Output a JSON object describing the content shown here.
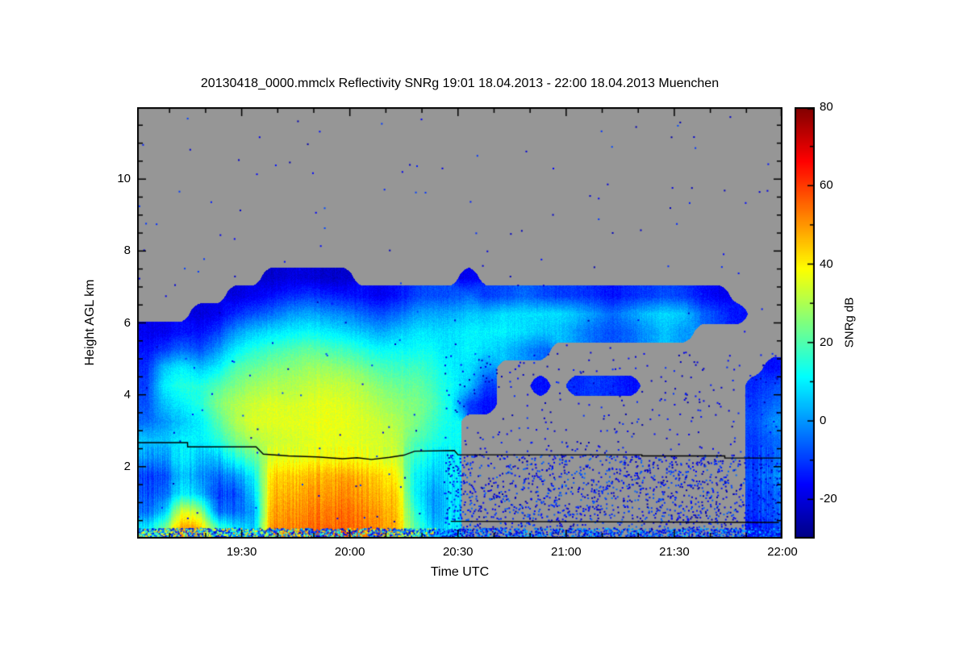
{
  "page": {
    "background": "#ffffff"
  },
  "chart_data": {
    "type": "heatmap",
    "title": "20130418_0000.mmclx Reflectivity SNRg   19:01 18.04.2013 - 22:00 18.04.2013 Muenchen",
    "xlabel": "Time UTC",
    "ylabel": "Height AGL km",
    "colorbar_label": "SNRg dB",
    "xlim_minutes": [
      0,
      179
    ],
    "ylim_km": [
      0,
      12
    ],
    "value_range_db": [
      -30,
      80
    ],
    "background_nodata_color": "#969696",
    "frame_color": "#000000",
    "x_ticks": [
      {
        "t": 29,
        "label": "19:30"
      },
      {
        "t": 59,
        "label": "20:00"
      },
      {
        "t": 89,
        "label": "20:30"
      },
      {
        "t": 119,
        "label": "21:00"
      },
      {
        "t": 149,
        "label": "21:30"
      },
      {
        "t": 179,
        "label": "22:00"
      }
    ],
    "x_minor_step_min": 10,
    "y_ticks": [
      {
        "h": 2,
        "label": "2"
      },
      {
        "h": 4,
        "label": "4"
      },
      {
        "h": 6,
        "label": "6"
      },
      {
        "h": 8,
        "label": "8"
      },
      {
        "h": 10,
        "label": "10"
      }
    ],
    "y_minor_step_km": 0.5,
    "colorbar_ticks": [
      {
        "v": 80,
        "label": "80"
      },
      {
        "v": 60,
        "label": "60"
      },
      {
        "v": 40,
        "label": "40"
      },
      {
        "v": 20,
        "label": "20"
      },
      {
        "v": 0,
        "label": "0"
      },
      {
        "v": -20,
        "label": "-20"
      }
    ],
    "colorbar_minor_step": 10,
    "colormap": {
      "range": [
        -30,
        80
      ],
      "stops": [
        {
          "t": 0.0,
          "c": "#000083"
        },
        {
          "t": 0.125,
          "c": "#0000ff"
        },
        {
          "t": 0.375,
          "c": "#00ffff"
        },
        {
          "t": 0.625,
          "c": "#ffff00"
        },
        {
          "t": 0.875,
          "c": "#ff0000"
        },
        {
          "t": 1.0,
          "c": "#800000"
        }
      ]
    },
    "grid": {
      "t_min": 0,
      "t_max": 179,
      "h_base_km": 0.25,
      "h_step_km": 0.5,
      "nx": 36,
      "rows_bottom_up": [
        [
          10,
          25,
          50,
          48,
          20,
          10,
          5,
          50,
          52,
          55,
          55,
          56,
          54,
          52,
          48,
          20,
          5,
          10,
          null,
          null,
          null,
          null,
          null,
          null,
          null,
          null,
          null,
          null,
          null,
          null,
          null,
          null,
          null,
          null,
          -15,
          -10
        ],
        [
          -5,
          5,
          35,
          30,
          -5,
          -5,
          0,
          48,
          50,
          52,
          53,
          54,
          52,
          50,
          46,
          15,
          0,
          8,
          null,
          null,
          null,
          null,
          null,
          null,
          null,
          null,
          null,
          null,
          null,
          null,
          null,
          null,
          null,
          null,
          -10,
          -5
        ],
        [
          -8,
          -5,
          10,
          5,
          -10,
          -8,
          5,
          45,
          47,
          50,
          50,
          51,
          49,
          47,
          44,
          10,
          0,
          8,
          null,
          null,
          null,
          null,
          null,
          null,
          null,
          null,
          null,
          null,
          null,
          null,
          null,
          null,
          null,
          null,
          -10,
          -5
        ],
        [
          -10,
          -8,
          5,
          0,
          -5,
          0,
          10,
          42,
          44,
          46,
          47,
          48,
          46,
          44,
          40,
          10,
          5,
          10,
          null,
          null,
          null,
          null,
          null,
          null,
          null,
          null,
          null,
          null,
          null,
          null,
          null,
          null,
          null,
          null,
          -8,
          0
        ],
        [
          0,
          0,
          10,
          5,
          5,
          15,
          20,
          35,
          36,
          37,
          38,
          38,
          37,
          36,
          34,
          15,
          10,
          10,
          null,
          null,
          null,
          null,
          null,
          null,
          null,
          null,
          null,
          null,
          null,
          null,
          null,
          null,
          null,
          null,
          -10,
          -5
        ],
        [
          5,
          5,
          10,
          10,
          15,
          25,
          30,
          33,
          34,
          35,
          36,
          36,
          35,
          34,
          32,
          20,
          15,
          12,
          null,
          null,
          null,
          null,
          null,
          null,
          null,
          null,
          null,
          null,
          null,
          null,
          null,
          null,
          null,
          null,
          -10,
          -5
        ],
        [
          -5,
          0,
          5,
          10,
          20,
          30,
          35,
          35,
          36,
          36,
          37,
          36,
          35,
          33,
          30,
          25,
          18,
          12,
          null,
          null,
          null,
          null,
          null,
          null,
          null,
          null,
          null,
          null,
          null,
          null,
          null,
          null,
          null,
          null,
          -8,
          0
        ],
        [
          -8,
          5,
          10,
          15,
          25,
          30,
          33,
          35,
          34,
          35,
          36,
          35,
          33,
          30,
          27,
          25,
          20,
          12,
          -10,
          -15,
          null,
          null,
          null,
          null,
          null,
          null,
          null,
          null,
          null,
          null,
          null,
          null,
          null,
          null,
          -10,
          -5
        ],
        [
          -10,
          10,
          15,
          15,
          20,
          25,
          28,
          30,
          30,
          32,
          33,
          32,
          30,
          26,
          23,
          22,
          18,
          12,
          5,
          -10,
          null,
          null,
          -15,
          null,
          -12,
          -10,
          -12,
          -15,
          null,
          null,
          null,
          null,
          null,
          null,
          -12,
          -8
        ],
        [
          -12,
          5,
          10,
          5,
          10,
          20,
          22,
          25,
          26,
          28,
          28,
          26,
          24,
          20,
          18,
          18,
          15,
          10,
          8,
          0,
          null,
          null,
          null,
          null,
          null,
          null,
          null,
          null,
          null,
          null,
          null,
          null,
          null,
          null,
          null,
          -15
        ],
        [
          -15,
          -10,
          -5,
          -8,
          0,
          10,
          15,
          18,
          20,
          22,
          20,
          18,
          15,
          12,
          12,
          12,
          12,
          8,
          10,
          8,
          5,
          0,
          -5,
          null,
          null,
          null,
          null,
          null,
          null,
          null,
          null,
          null,
          null,
          null,
          null,
          null
        ],
        [
          -18,
          -18,
          -15,
          -15,
          -10,
          0,
          5,
          8,
          10,
          12,
          10,
          8,
          5,
          2,
          5,
          8,
          8,
          8,
          10,
          10,
          10,
          8,
          5,
          5,
          0,
          -5,
          -8,
          -5,
          0,
          5,
          0,
          null,
          null,
          null,
          null,
          null
        ],
        [
          null,
          null,
          null,
          -20,
          -18,
          -12,
          -8,
          -5,
          0,
          2,
          0,
          -2,
          -5,
          -8,
          -5,
          0,
          2,
          2,
          5,
          5,
          8,
          8,
          8,
          8,
          5,
          0,
          -5,
          0,
          5,
          8,
          5,
          -5,
          -10,
          -15,
          null,
          null
        ],
        [
          null,
          null,
          null,
          null,
          null,
          -20,
          -18,
          -15,
          -12,
          -10,
          -12,
          -14,
          -15,
          -18,
          -15,
          -10,
          -8,
          -8,
          -5,
          -10,
          -8,
          -5,
          -8,
          -10,
          -10,
          -12,
          -15,
          -12,
          -10,
          -8,
          -10,
          -15,
          -18,
          null,
          null,
          null
        ],
        [
          null,
          null,
          null,
          null,
          null,
          null,
          null,
          -22,
          -20,
          -20,
          -22,
          -22,
          null,
          null,
          null,
          null,
          null,
          null,
          -18,
          null,
          null,
          null,
          null,
          null,
          null,
          null,
          null,
          null,
          null,
          null,
          null,
          null,
          null,
          null,
          null,
          null
        ]
      ]
    },
    "boundary_lines_km": [
      {
        "points": [
          [
            0,
            2.67
          ],
          [
            14,
            2.67
          ],
          [
            14,
            2.55
          ],
          [
            33,
            2.55
          ],
          [
            35,
            2.35
          ],
          [
            42,
            2.3
          ],
          [
            50,
            2.27
          ],
          [
            57,
            2.22
          ],
          [
            61,
            2.25
          ],
          [
            65,
            2.2
          ],
          [
            70,
            2.26
          ],
          [
            74,
            2.32
          ],
          [
            77,
            2.43
          ],
          [
            88,
            2.45
          ],
          [
            89,
            2.33
          ],
          [
            140,
            2.33
          ],
          [
            140,
            2.3
          ],
          [
            163,
            2.3
          ],
          [
            163,
            2.24
          ],
          [
            179,
            2.24
          ]
        ]
      },
      {
        "points": [
          [
            87,
            0.48
          ],
          [
            178,
            0.45
          ]
        ]
      }
    ],
    "speckle": {
      "seed": 20130418,
      "regions": [
        {
          "t": [
            0,
            179
          ],
          "h": [
            0.02,
            0.3
          ],
          "count": 2600,
          "v": [
            -26,
            8
          ]
        },
        {
          "t": [
            0,
            83
          ],
          "h": [
            0.02,
            0.3
          ],
          "count": 350,
          "v": [
            15,
            48
          ]
        },
        {
          "t": [
            85,
            179
          ],
          "h": [
            0.3,
            2.35
          ],
          "count": 1500,
          "v": [
            -26,
            -4
          ]
        },
        {
          "t": [
            85,
            179
          ],
          "h": [
            2.4,
            5.2
          ],
          "count": 260,
          "v": [
            -26,
            -10
          ]
        },
        {
          "t": [
            0,
            179
          ],
          "h": [
            0.3,
            11.85
          ],
          "count": 230,
          "v": [
            -26,
            -8
          ]
        }
      ]
    }
  }
}
